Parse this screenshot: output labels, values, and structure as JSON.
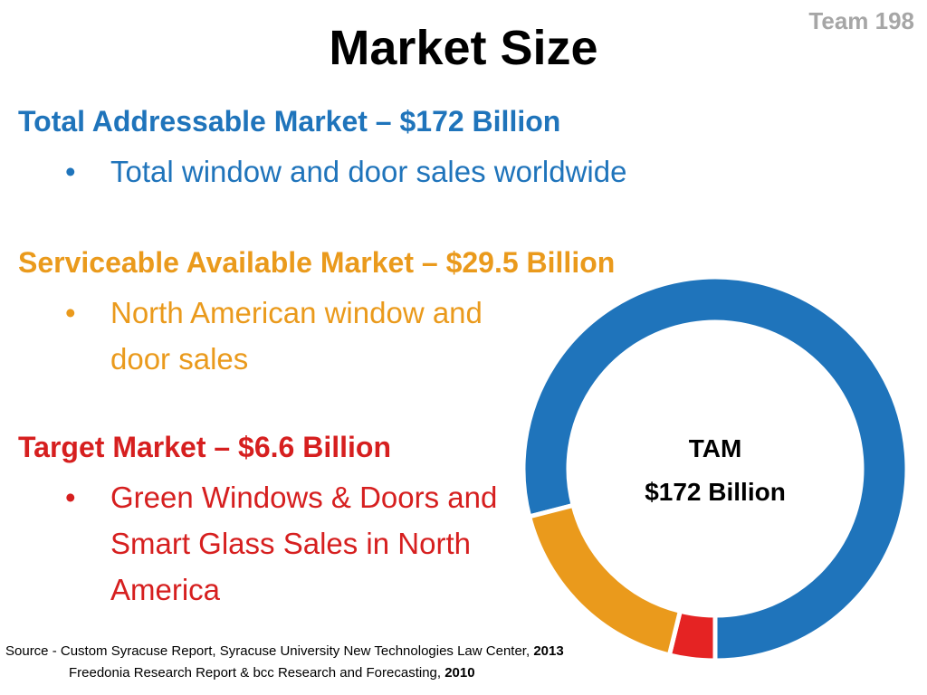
{
  "slide": {
    "team": "Team 198",
    "title": "Market Size"
  },
  "sections": {
    "tam": {
      "heading": "Total Addressable Market – $172 Billion",
      "bullet": "Total window and door sales worldwide",
      "color": "#1f74bb"
    },
    "sam": {
      "heading": "Serviceable Available Market – $29.5 Billion",
      "bullet": "North American window and door sales",
      "color": "#ea9a1c"
    },
    "tm": {
      "heading": "Target Market – $6.6 Billion",
      "bullet": "Green Windows & Doors and Smart Glass Sales in North America",
      "color": "#d61f1f"
    }
  },
  "bullet_symbol": "•",
  "chart_data": {
    "type": "pie",
    "variant": "donut",
    "center_label": [
      "TAM",
      "$172 Billion"
    ],
    "slices": [
      {
        "name": "Total Addressable Market",
        "value": 172,
        "color": "#1f74bb"
      },
      {
        "name": "Serviceable Available Market",
        "value": 29.5,
        "color": "#ea9a1c"
      },
      {
        "name": "Target Market",
        "value": 6.6,
        "color": "#e52323"
      }
    ],
    "units": "Billion USD"
  },
  "source": {
    "line1_text": "Source - Custom Syracuse Report, Syracuse University New Technologies Law Center, ",
    "line1_year": "2013",
    "line2_text": "Freedonia Research Report & bcc Research and Forecasting, ",
    "line2_year": "2010"
  }
}
